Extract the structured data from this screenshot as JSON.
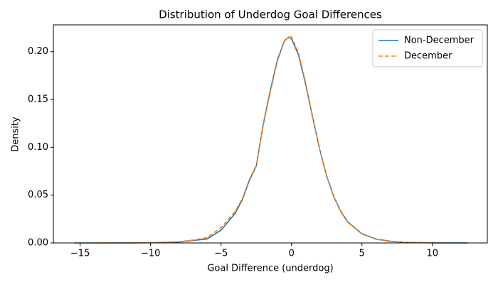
{
  "chart_data": {
    "type": "line",
    "title": "Distribution of Underdog Goal Differences",
    "x_label": "Goal Difference (underdog)",
    "y_label": "Density",
    "xlim": [
      -16.9,
      13.9
    ],
    "ylim": [
      0,
      0.228
    ],
    "xticks": [
      {
        "value": -15,
        "label": "−15"
      },
      {
        "value": -10,
        "label": "−10"
      },
      {
        "value": -5,
        "label": "−5"
      },
      0,
      5,
      10
    ],
    "yticks": [
      {
        "value": 0,
        "label": "0.00"
      },
      {
        "value": 0.05,
        "label": "0.05"
      },
      {
        "value": 0.1,
        "label": "0.10"
      },
      {
        "value": 0.15,
        "label": "0.15"
      },
      {
        "value": 0.2,
        "label": "0.20"
      }
    ],
    "legend": "upper right",
    "series": [
      {
        "name": "Non-December",
        "color": "#1f77b4",
        "dash": "solid",
        "x": [
          -15.4,
          -14,
          -12,
          -10,
          -8,
          -7,
          -6,
          -5,
          -4,
          -3.5,
          -3,
          -2.5,
          -2,
          -1.5,
          -1,
          -0.5,
          -0.2,
          0,
          0.5,
          1,
          1.5,
          2,
          2.5,
          3,
          3.5,
          4,
          5,
          6,
          7,
          8,
          10,
          12.5
        ],
        "values": [
          0.0,
          0.0,
          2e-05,
          0.0002,
          0.001,
          0.0025,
          0.0041,
          0.0133,
          0.0309,
          0.0448,
          0.065,
          0.0804,
          0.1244,
          0.1597,
          0.1914,
          0.2114,
          0.215,
          0.2134,
          0.1966,
          0.1665,
          0.1314,
          0.0979,
          0.07,
          0.0485,
          0.033,
          0.022,
          0.0096,
          0.0041,
          0.0018,
          0.0007,
          0.00016,
          2e-05
        ]
      },
      {
        "name": "December",
        "color": "#ff7f0e",
        "dash": "dashed",
        "x": [
          -14,
          -12,
          -10,
          -8,
          -7,
          -6,
          -5,
          -4,
          -3.5,
          -3,
          -2.5,
          -2,
          -1.5,
          -1,
          -0.5,
          -0.1,
          0,
          0.5,
          1,
          1.5,
          2,
          2.5,
          3,
          3.5,
          4,
          5,
          6,
          7,
          8,
          9,
          11
        ],
        "values": [
          0.0,
          3e-05,
          0.0003,
          0.0013,
          0.003,
          0.0055,
          0.016,
          0.033,
          0.046,
          0.066,
          0.081,
          0.1235,
          0.158,
          0.19,
          0.211,
          0.217,
          0.2155,
          0.199,
          0.168,
          0.132,
          0.098,
          0.0695,
          0.048,
          0.0325,
          0.0215,
          0.0093,
          0.0039,
          0.0016,
          0.0006,
          0.0002,
          2e-05
        ]
      }
    ]
  }
}
